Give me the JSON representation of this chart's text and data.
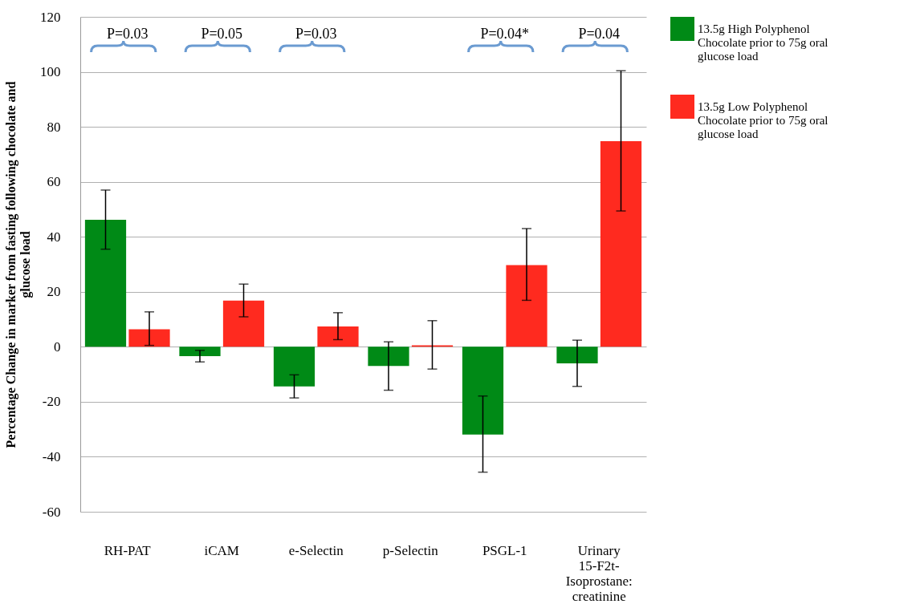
{
  "chart_data": {
    "type": "bar",
    "ylabel": "Percentage Change in marker from fasting following chocolate and glucose load",
    "categories": [
      "RH-PAT",
      "iCAM",
      "e-Selectin",
      "p-Selectin",
      "PSGL-1",
      "Urinary 15-F2t-Isoprostane: creatinine"
    ],
    "series": [
      {
        "name": "13.5g High Polyphenol Chocolate prior to 75g oral glucose load",
        "color": "#008a16",
        "values": [
          46.2,
          -3.4,
          -14.4,
          -7,
          -31.9,
          -6
        ],
        "errors": [
          [
            35.5,
            57
          ],
          [
            -5.5,
            -1.3
          ],
          [
            -18.6,
            -10.2
          ],
          [
            -15.8,
            1.8
          ],
          [
            -45.6,
            -17.9
          ],
          [
            -14.4,
            2.4
          ]
        ]
      },
      {
        "name": "13.5g Low Polyphenol Chocolate prior to 75g oral glucose load",
        "color": "#ff2a1f",
        "values": [
          6.4,
          16.8,
          7.4,
          0.5,
          29.7,
          74.8
        ],
        "errors": [
          [
            0.5,
            12.7
          ],
          [
            10.9,
            22.8
          ],
          [
            2.6,
            12.4
          ],
          [
            -8.1,
            9.5
          ],
          [
            16.9,
            43
          ],
          [
            49.4,
            100.4
          ]
        ]
      }
    ],
    "ylim": [
      -60,
      120
    ],
    "yticks": [
      -60,
      -40,
      -20,
      0,
      20,
      40,
      60,
      80,
      100,
      120
    ],
    "grid": "y",
    "legend": "right",
    "annotations": [
      "P=0.03",
      "P=0.05",
      "P=0.03",
      "P=0.04*",
      "P=0.04"
    ]
  }
}
